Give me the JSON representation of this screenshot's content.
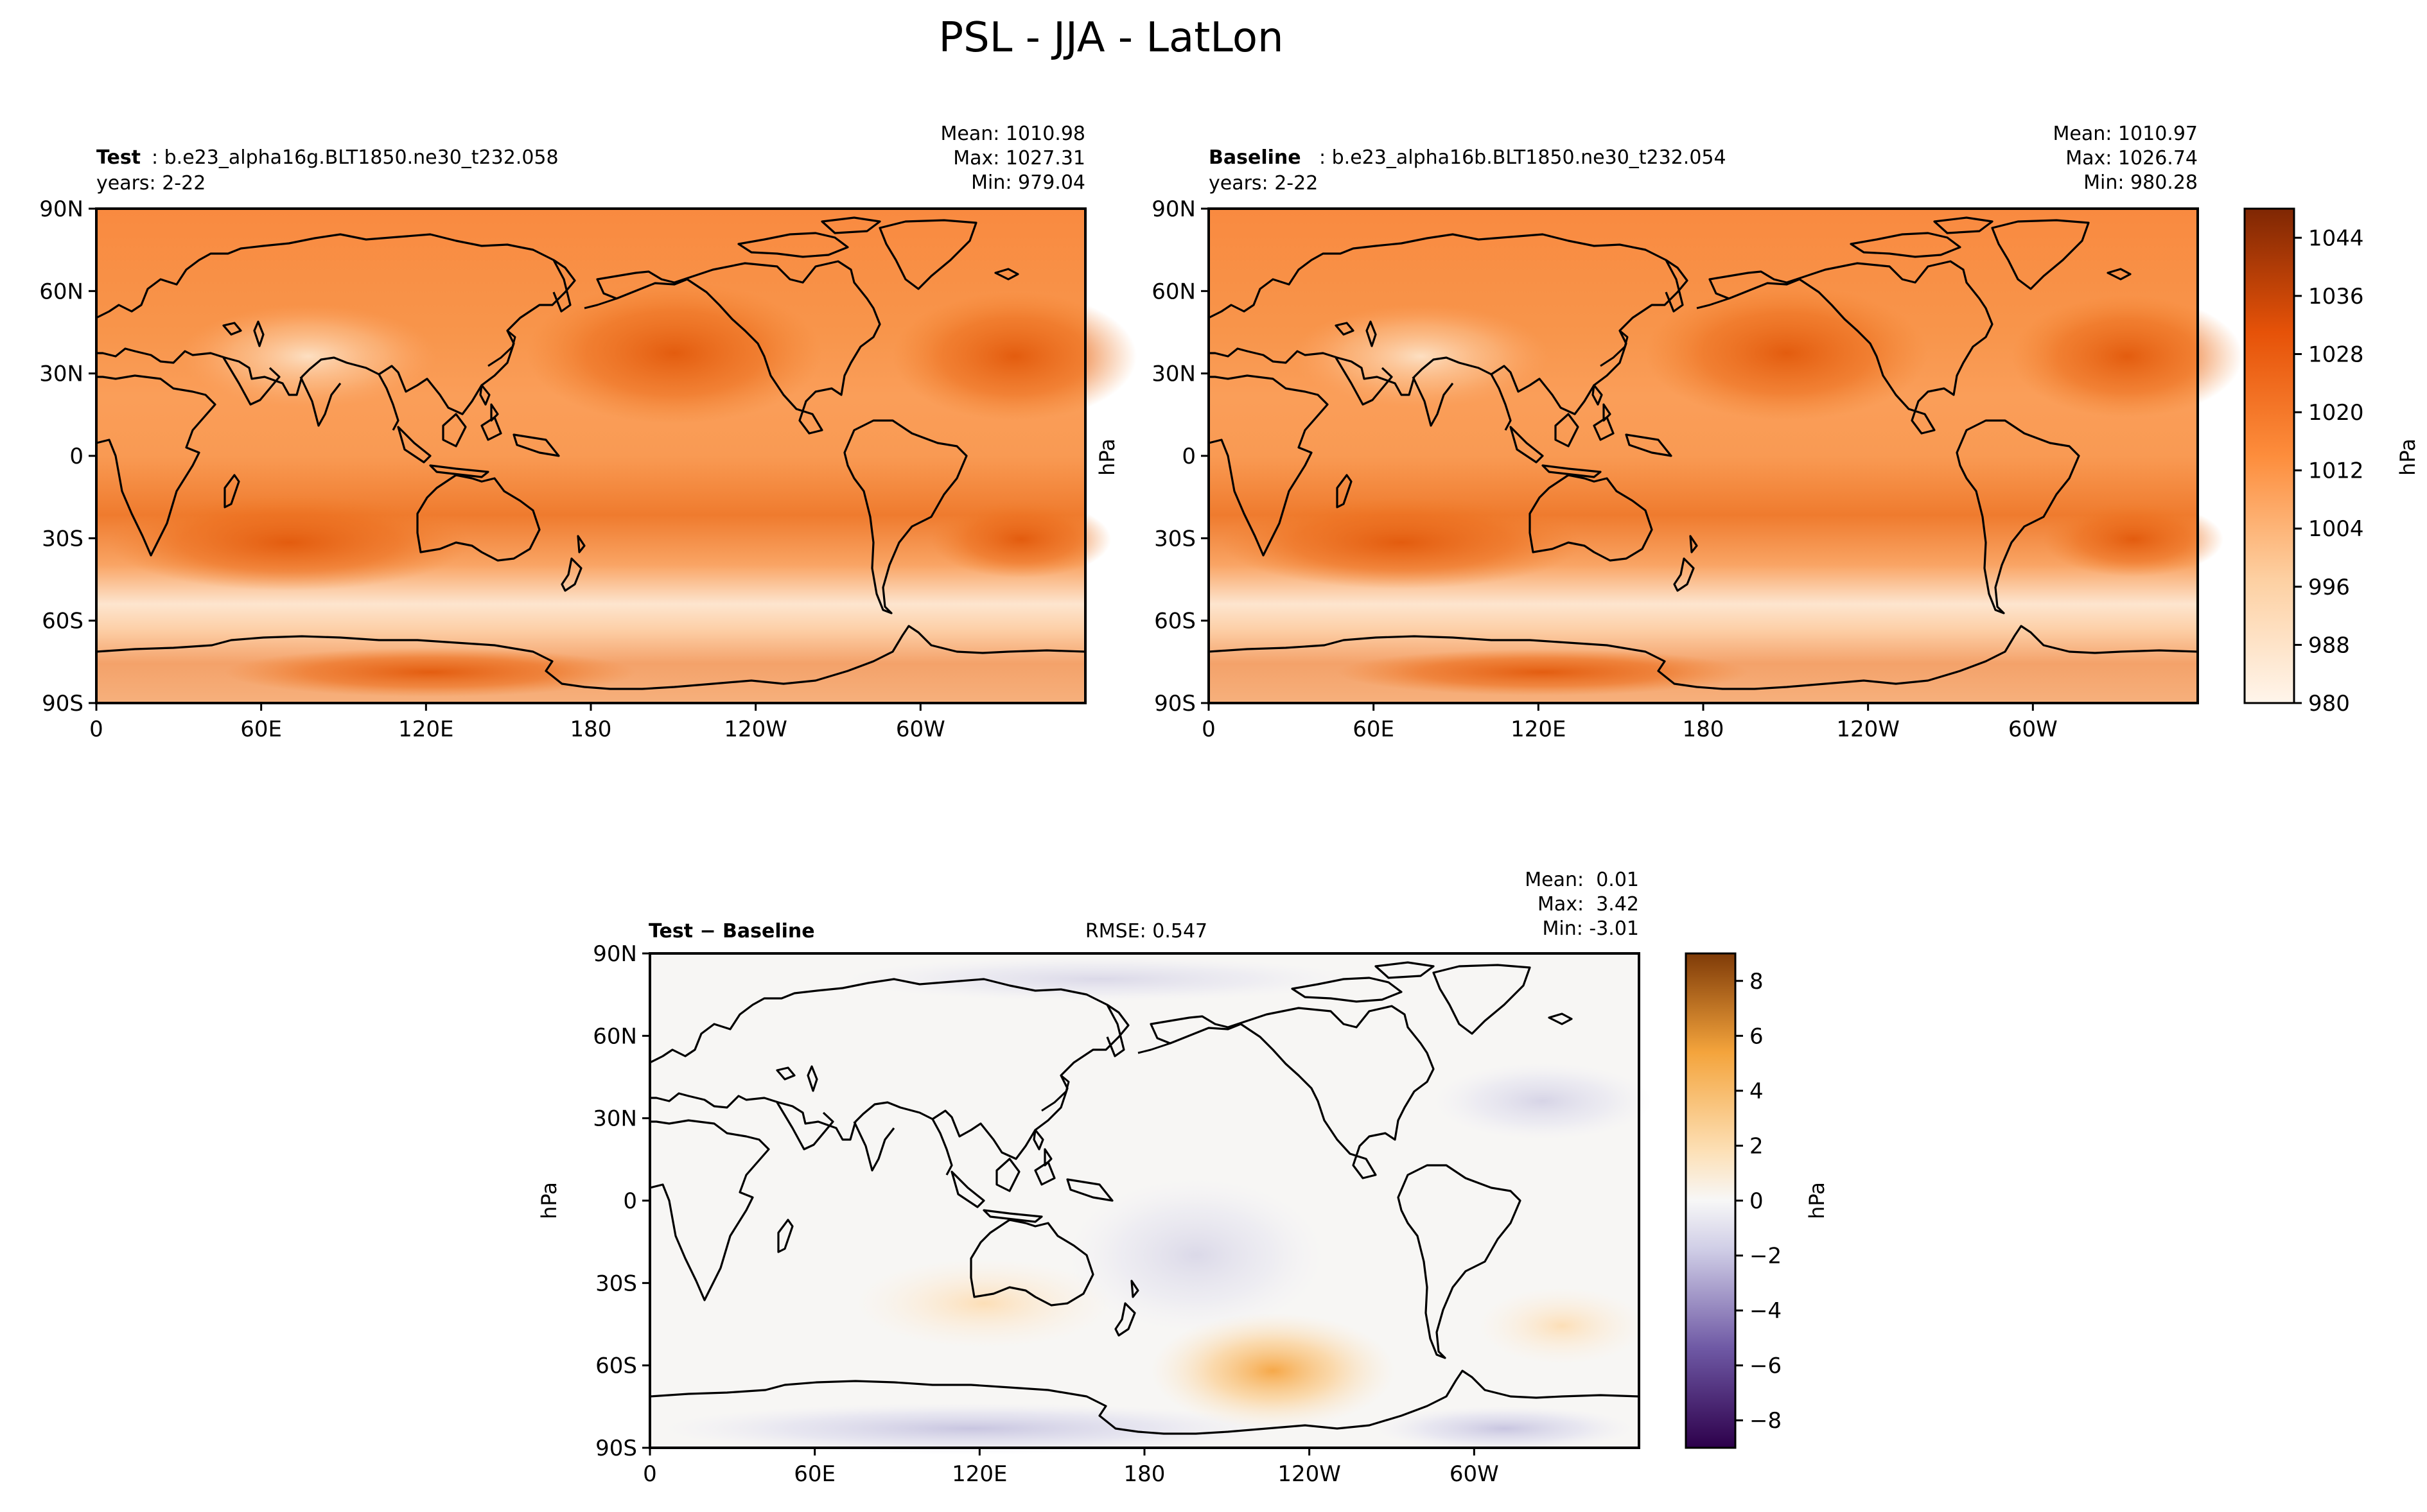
{
  "figure": {
    "title": "PSL - JJA - LatLon"
  },
  "panels": {
    "test": {
      "label_bold": "Test",
      "label_rest": ": b.e23_alpha16g.BLT1850.ne30_t232.058",
      "years": "years: 2-22",
      "stats": {
        "mean": "Mean: 1010.98",
        "max": "Max: 1027.31",
        "min": "Min: 979.04"
      }
    },
    "baseline": {
      "label_bold": "Baseline",
      "label_rest": ": b.e23_alpha16b.BLT1850.ne30_t232.054",
      "years": "years: 2-22",
      "stats": {
        "mean": "Mean: 1010.97",
        "max": "Max: 1026.74",
        "min": "Min: 980.28"
      }
    },
    "diff": {
      "label_bold": "Test − Baseline",
      "rmse": "RMSE: 0.547",
      "stats": {
        "mean": "Mean:  0.01",
        "max": "Max:  3.42",
        "min": "Min: -3.01"
      }
    }
  },
  "axes": {
    "x_ticks": [
      "0",
      "60E",
      "120E",
      "180",
      "120W",
      "60W"
    ],
    "y_ticks": [
      "90N",
      "60N",
      "30N",
      "0",
      "30S",
      "60S",
      "90S"
    ]
  },
  "colorbars": {
    "main": {
      "label": "hPa",
      "ticks": [
        "1044",
        "1036",
        "1028",
        "1020",
        "1012",
        "1004",
        "996",
        "988",
        "980"
      ]
    },
    "diff": {
      "label": "hPa",
      "ticks": [
        "8",
        "6",
        "4",
        "2",
        "0",
        "−2",
        "−4",
        "−6",
        "−8"
      ]
    }
  },
  "side_labels": {
    "main": "hPa",
    "diff": "hPa"
  },
  "colors": {
    "main_light": "#fff5eb",
    "main_mid": "#fd8d3c",
    "main_dark": "#7f2704",
    "diff_pos": "#b35806",
    "diff_neg": "#2d004b"
  },
  "chart_data": [
    {
      "type": "heatmap",
      "name": "test",
      "title": "Test: b.e23_alpha16g.BLT1850.ne30_t232.058",
      "xlabel": "",
      "ylabel": "",
      "units": "hPa",
      "x_range": [
        0,
        360
      ],
      "y_range": [
        -90,
        90
      ],
      "color_range": [
        980,
        1048
      ],
      "stats": {
        "mean": 1010.98,
        "max": 1027.31,
        "min": 979.04
      }
    },
    {
      "type": "heatmap",
      "name": "baseline",
      "title": "Baseline: b.e23_alpha16b.BLT1850.ne30_t232.054",
      "xlabel": "",
      "ylabel": "",
      "units": "hPa",
      "x_range": [
        0,
        360
      ],
      "y_range": [
        -90,
        90
      ],
      "color_range": [
        980,
        1048
      ],
      "stats": {
        "mean": 1010.97,
        "max": 1026.74,
        "min": 980.28
      }
    },
    {
      "type": "heatmap",
      "name": "test-baseline",
      "title": "Test − Baseline",
      "xlabel": "",
      "ylabel": "",
      "units": "hPa",
      "x_range": [
        0,
        360
      ],
      "y_range": [
        -90,
        90
      ],
      "color_range": [
        -9,
        9
      ],
      "rmse": 0.547,
      "stats": {
        "mean": 0.01,
        "max": 3.42,
        "min": -3.01
      }
    }
  ]
}
